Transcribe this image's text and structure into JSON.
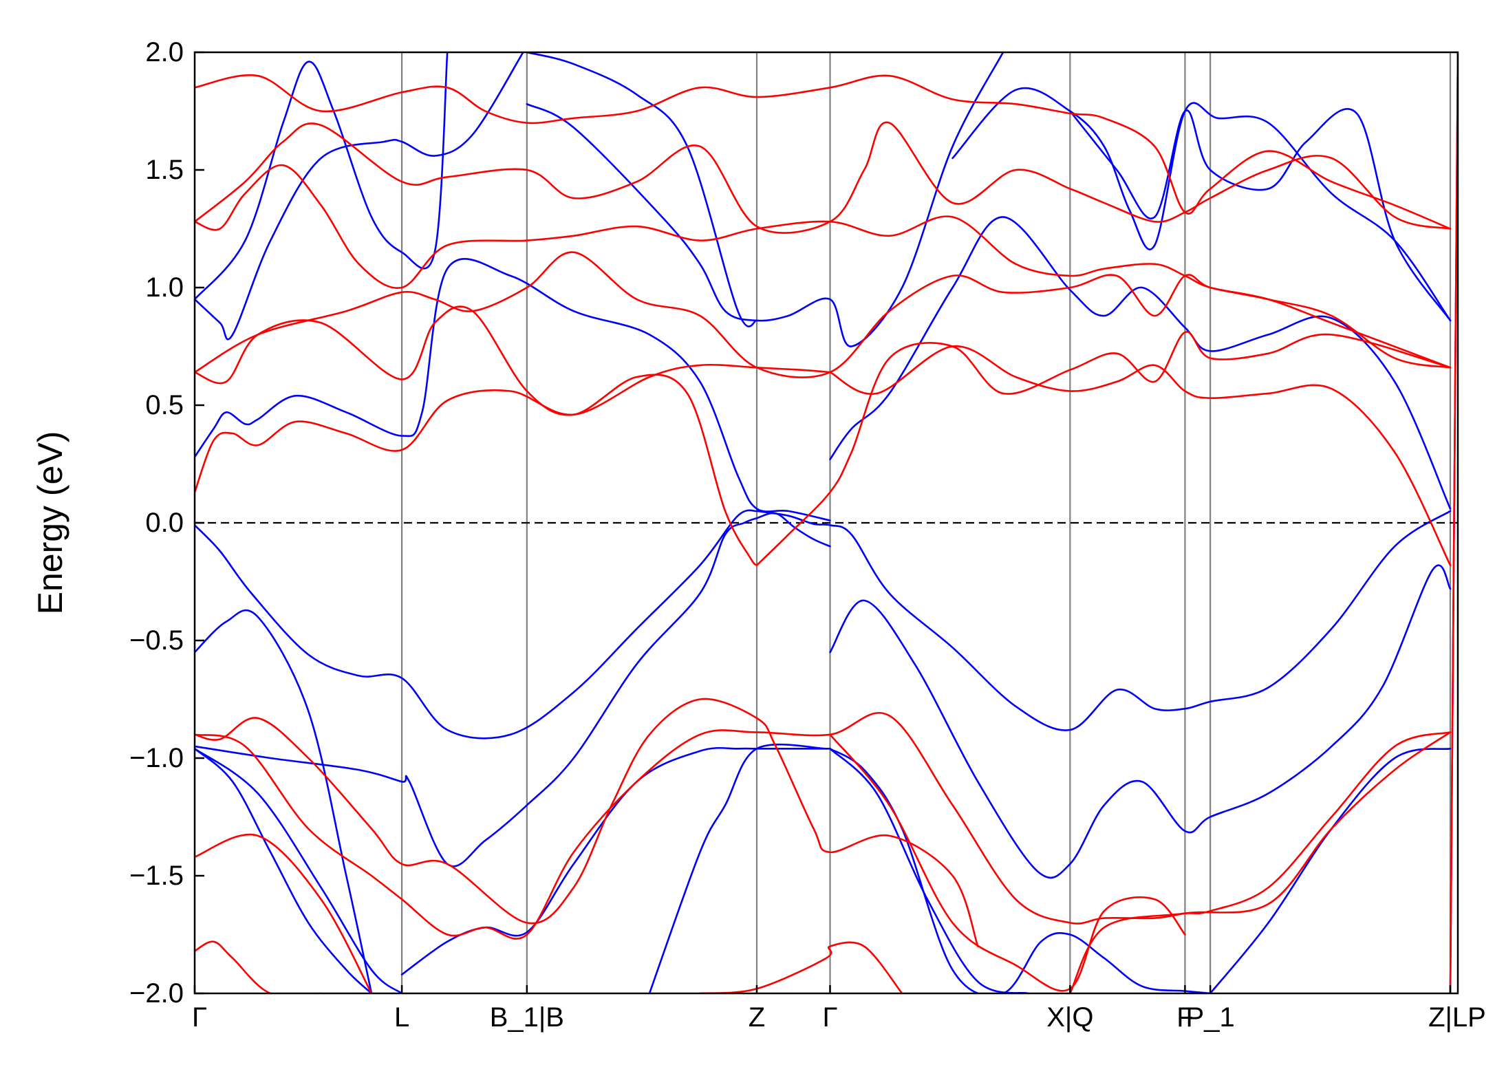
{
  "chart_data": {
    "type": "line",
    "title": "",
    "xlabel": "",
    "ylabel": "Energy (eV)",
    "ylim": [
      -2.0,
      2.0
    ],
    "yticks": [
      -2.0,
      -1.5,
      -1.0,
      -0.5,
      0.0,
      0.5,
      1.0,
      1.5,
      2.0
    ],
    "ytick_labels": [
      "−2.0",
      "−1.5",
      "−1.0",
      "−0.5",
      "0.0",
      "0.5",
      "1.0",
      "1.5",
      "2.0"
    ],
    "xlim": [
      0,
      1
    ],
    "kpoints": [
      {
        "label": "Γ",
        "x": 0.0,
        "line": false
      },
      {
        "label": "L",
        "x": 0.164,
        "line": true
      },
      {
        "label": "B_1|B",
        "x": 0.263,
        "line": true
      },
      {
        "label": "Z",
        "x": 0.445,
        "line": true
      },
      {
        "label": "Γ",
        "x": 0.503,
        "line": true
      },
      {
        "label": "X|Q",
        "x": 0.693,
        "line": true
      },
      {
        "label": "F",
        "x": 0.784,
        "line": true
      },
      {
        "label": "P_1",
        "x": 0.804,
        "line": true
      },
      {
        "label": "Z|LP",
        "x": 0.994,
        "line": true
      }
    ],
    "fermi_level": 0.0,
    "grid": false,
    "legend": "none",
    "colors": {
      "spin_up": "#0000ff",
      "spin_down": "#ff0000",
      "kline": "#808080",
      "fermi": "#000000",
      "axes": "#000000"
    },
    "series": [
      {
        "color": "#0000ff",
        "x": [
          0,
          0.02,
          0.045,
          0.09,
          0.13,
          0.164,
          0.2,
          0.25,
          0.3,
          0.35,
          0.4,
          0.43,
          0.445
        ],
        "y": [
          -0.01,
          -0.12,
          -0.3,
          -0.56,
          -0.65,
          -0.66,
          -0.88,
          -0.9,
          -0.72,
          -0.45,
          -0.18,
          0.03,
          0.05
        ]
      },
      {
        "color": "#0000ff",
        "x": [
          0.445,
          0.47,
          0.49,
          0.503,
          0.52,
          0.55,
          0.6,
          0.65,
          0.693,
          0.73,
          0.76,
          0.784,
          0.804,
          0.85,
          0.9,
          0.95,
          0.994
        ],
        "y": [
          0.05,
          0.03,
          -0.005,
          -0.01,
          -0.05,
          -0.3,
          -0.53,
          -0.78,
          -0.88,
          -0.71,
          -0.79,
          -0.79,
          -0.76,
          -0.7,
          -0.45,
          -0.1,
          0.05
        ]
      },
      {
        "color": "#0000ff",
        "x": [
          0,
          0.06,
          0.13,
          0.164,
          0.17,
          0.2,
          0.23,
          0.263,
          0.3,
          0.35,
          0.4,
          0.42,
          0.435,
          0.445,
          0.46,
          0.475,
          0.49,
          0.503
        ],
        "y": [
          -0.95,
          -1.0,
          -1.05,
          -1.1,
          -1.1,
          -1.45,
          -1.35,
          -1.2,
          -1.0,
          -0.6,
          -0.3,
          -0.05,
          0.0,
          0.02,
          0.04,
          -0.02,
          -0.07,
          -0.1
        ]
      },
      {
        "color": "#0000ff",
        "x": [
          0.503,
          0.53,
          0.57,
          0.62,
          0.667,
          0.693,
          0.72,
          0.75,
          0.784,
          0.804,
          0.85,
          0.9,
          0.94,
          0.98,
          0.994
        ],
        "y": [
          -0.55,
          -0.33,
          -0.6,
          -1.1,
          -1.48,
          -1.45,
          -1.2,
          -1.1,
          -1.31,
          -1.25,
          -1.15,
          -0.95,
          -0.7,
          -0.2,
          -0.28
        ]
      },
      {
        "color": "#0000ff",
        "x": [
          0,
          0.025,
          0.05,
          0.09,
          0.12,
          0.14
        ],
        "y": [
          -0.55,
          -0.42,
          -0.4,
          -0.8,
          -1.5,
          -2.0
        ]
      },
      {
        "color": "#0000ff",
        "x": [
          0,
          0.05,
          0.1,
          0.14,
          0.164
        ],
        "y": [
          -0.96,
          -1.15,
          -1.55,
          -1.9,
          -2.0
        ]
      },
      {
        "color": "#0000ff",
        "x": [
          0,
          0.03,
          0.06,
          0.09,
          0.12,
          0.14
        ],
        "y": [
          -0.96,
          -1.1,
          -1.4,
          -1.7,
          -1.9,
          -2.0
        ]
      },
      {
        "color": "#0000ff",
        "x": [
          0.164,
          0.2,
          0.23,
          0.263,
          0.3,
          0.35,
          0.4,
          0.43,
          0.445,
          0.47,
          0.503
        ],
        "y": [
          -1.92,
          -1.78,
          -1.72,
          -1.74,
          -1.45,
          -1.1,
          -0.97,
          -0.96,
          -0.96,
          -0.96,
          -0.96
        ]
      },
      {
        "color": "#0000ff",
        "x": [
          0.503,
          0.53,
          0.56,
          0.6,
          0.64,
          0.67,
          0.693,
          0.72,
          0.75,
          0.784,
          0.804
        ],
        "y": [
          -0.96,
          -1.05,
          -1.3,
          -1.9,
          -2.0,
          -1.78,
          -1.75,
          -1.85,
          -1.97,
          -1.99,
          -2.0
        ]
      },
      {
        "color": "#0000ff",
        "x": [
          0.804,
          0.85,
          0.9,
          0.95,
          0.994
        ],
        "y": [
          -2.0,
          -1.7,
          -1.3,
          -1.0,
          -0.96
        ]
      },
      {
        "color": "#0000ff",
        "x": [
          0.36,
          0.4,
          0.42,
          0.445,
          0.5
        ],
        "y": [
          -2.0,
          -1.4,
          -1.2,
          -0.96,
          -0.96
        ]
      },
      {
        "color": "#0000ff",
        "x": [
          0.503,
          0.54,
          0.58,
          0.62,
          0.66
        ],
        "y": [
          -0.96,
          -1.15,
          -1.6,
          -1.95,
          -2.0
        ]
      },
      {
        "color": "#0000ff",
        "x": [
          0,
          0.015,
          0.025,
          0.04,
          0.05,
          0.08,
          0.12,
          0.164,
          0.18,
          0.2,
          0.25,
          0.3,
          0.36,
          0.4,
          0.43,
          0.445,
          0.47,
          0.503
        ],
        "y": [
          0.28,
          0.4,
          0.47,
          0.42,
          0.44,
          0.54,
          0.47,
          0.37,
          0.47,
          1.08,
          1.05,
          0.9,
          0.8,
          0.6,
          0.2,
          0.06,
          0.05,
          0.01
        ]
      },
      {
        "color": "#0000ff",
        "x": [
          0.503,
          0.52,
          0.55,
          0.6,
          0.64,
          0.693,
          0.72,
          0.75,
          0.784,
          0.804,
          0.85,
          0.9,
          0.95,
          0.994
        ],
        "y": [
          0.27,
          0.4,
          0.55,
          1.0,
          1.3,
          0.99,
          0.88,
          1.0,
          0.83,
          0.73,
          0.8,
          0.87,
          0.6,
          0.06
        ]
      },
      {
        "color": "#0000ff",
        "x": [
          0,
          0.02,
          0.03,
          0.06,
          0.1,
          0.15,
          0.164,
          0.19,
          0.22,
          0.26
        ],
        "y": [
          0.95,
          0.85,
          0.8,
          1.2,
          1.55,
          1.62,
          1.62,
          1.56,
          1.65,
          2.0
        ]
      },
      {
        "color": "#0000ff",
        "x": [
          0.263,
          0.3,
          0.37,
          0.4,
          0.42,
          0.445,
          0.47,
          0.503,
          0.52,
          0.56,
          0.6,
          0.64
        ],
        "y": [
          1.78,
          1.68,
          1.3,
          1.1,
          0.9,
          0.86,
          0.88,
          0.95,
          0.75,
          1.0,
          1.6,
          2.0
        ]
      },
      {
        "color": "#0000ff",
        "x": [
          0.6,
          0.65,
          0.693,
          0.72,
          0.74,
          0.76,
          0.784,
          0.81,
          0.85,
          0.9,
          0.95,
          0.994
        ],
        "y": [
          1.55,
          1.84,
          1.75,
          1.6,
          1.33,
          1.18,
          1.75,
          1.72,
          1.7,
          1.4,
          1.2,
          0.86
        ]
      },
      {
        "color": "#0000ff",
        "x": [
          0,
          0.04,
          0.07,
          0.09,
          0.11,
          0.14,
          0.164,
          0.19,
          0.2
        ],
        "y": [
          0.95,
          1.2,
          1.7,
          1.96,
          1.75,
          1.3,
          1.15,
          1.15,
          2.0
        ]
      },
      {
        "color": "#0000ff",
        "x": [
          0.263,
          0.3,
          0.35,
          0.39,
          0.43,
          0.445
        ],
        "y": [
          2.0,
          1.95,
          1.82,
          1.6,
          0.9,
          0.86
        ]
      },
      {
        "color": "#0000ff",
        "x": [
          0.693,
          0.73,
          0.76,
          0.784,
          0.804,
          0.85,
          0.88,
          0.92,
          0.95,
          0.994
        ],
        "y": [
          1.75,
          1.5,
          1.3,
          1.75,
          1.5,
          1.42,
          1.62,
          1.74,
          1.2,
          0.86
        ]
      },
      {
        "color": "#0000ff",
        "x": [
          0.994,
          1.0
        ],
        "y": [
          -2.0,
          2.0
        ]
      },
      {
        "color": "#ff0000",
        "x": [
          0,
          0.015,
          0.03,
          0.05,
          0.08,
          0.12,
          0.164,
          0.2,
          0.25,
          0.3,
          0.36,
          0.4,
          0.445,
          0.48,
          0.503
        ],
        "y": [
          0.13,
          0.35,
          0.38,
          0.33,
          0.43,
          0.38,
          0.31,
          0.52,
          0.56,
          0.46,
          0.62,
          0.67,
          0.66,
          0.65,
          0.64
        ]
      },
      {
        "color": "#ff0000",
        "x": [
          0.503,
          0.54,
          0.6,
          0.65,
          0.693,
          0.73,
          0.76,
          0.784,
          0.804,
          0.85,
          0.9,
          0.95,
          0.994
        ],
        "y": [
          0.64,
          0.55,
          0.75,
          0.62,
          0.56,
          0.6,
          0.67,
          0.56,
          0.53,
          0.55,
          0.57,
          0.3,
          -0.18
        ]
      },
      {
        "color": "#ff0000",
        "x": [
          0,
          0.025,
          0.05,
          0.1,
          0.164,
          0.19,
          0.22,
          0.263,
          0.3,
          0.35,
          0.39,
          0.42,
          0.44,
          0.445
        ],
        "y": [
          0.64,
          0.6,
          0.8,
          0.85,
          0.61,
          0.85,
          0.9,
          0.56,
          0.46,
          0.62,
          0.55,
          0.05,
          -0.15,
          -0.18
        ]
      },
      {
        "color": "#ff0000",
        "x": [
          0.445,
          0.47,
          0.503,
          0.52,
          0.55,
          0.6,
          0.64,
          0.693,
          0.73,
          0.76,
          0.784,
          0.804,
          0.85,
          0.9,
          0.994
        ],
        "y": [
          -0.18,
          -0.05,
          0.13,
          0.3,
          0.7,
          0.75,
          0.55,
          0.65,
          0.72,
          0.6,
          0.81,
          0.7,
          0.72,
          0.8,
          0.66
        ]
      },
      {
        "color": "#ff0000",
        "x": [
          0,
          0.05,
          0.12,
          0.164,
          0.19,
          0.22,
          0.263,
          0.3,
          0.35,
          0.4,
          0.445,
          0.503,
          0.55,
          0.6,
          0.64,
          0.693,
          0.73,
          0.76,
          0.784,
          0.804,
          0.85,
          0.9,
          0.95,
          0.994
        ],
        "y": [
          0.64,
          0.8,
          0.9,
          0.98,
          0.95,
          0.9,
          1.0,
          1.15,
          0.95,
          0.88,
          0.66,
          0.64,
          0.9,
          1.05,
          0.98,
          1.0,
          1.05,
          0.88,
          1.05,
          1.0,
          0.95,
          0.88,
          0.7,
          0.66
        ]
      },
      {
        "color": "#ff0000",
        "x": [
          0,
          0.02,
          0.04,
          0.07,
          0.1,
          0.13,
          0.164,
          0.2,
          0.263,
          0.3,
          0.35,
          0.4,
          0.445,
          0.503,
          0.55,
          0.6,
          0.65,
          0.693,
          0.72,
          0.76,
          0.784,
          0.804,
          0.85,
          0.9,
          0.994
        ],
        "y": [
          1.28,
          1.25,
          1.4,
          1.52,
          1.35,
          1.1,
          1.0,
          1.18,
          1.2,
          1.22,
          1.26,
          1.2,
          1.25,
          1.28,
          1.22,
          1.3,
          1.1,
          1.05,
          1.08,
          1.1,
          1.05,
          1.0,
          0.95,
          0.85,
          0.66
        ]
      },
      {
        "color": "#ff0000",
        "x": [
          0,
          0.04,
          0.07,
          0.1,
          0.164,
          0.2,
          0.263,
          0.3,
          0.35,
          0.4,
          0.445,
          0.503,
          0.53,
          0.55,
          0.6,
          0.65,
          0.693,
          0.72,
          0.76,
          0.784,
          0.804,
          0.85,
          0.9,
          0.95,
          0.994
        ],
        "y": [
          1.28,
          1.45,
          1.62,
          1.69,
          1.45,
          1.47,
          1.5,
          1.38,
          1.45,
          1.6,
          1.26,
          1.28,
          1.5,
          1.7,
          1.36,
          1.5,
          1.42,
          1.36,
          1.28,
          1.32,
          1.38,
          1.5,
          1.55,
          1.3,
          1.25
        ]
      },
      {
        "color": "#ff0000",
        "x": [
          0,
          0.05,
          0.1,
          0.164,
          0.2,
          0.23,
          0.263,
          0.3,
          0.35,
          0.4,
          0.445,
          0.503,
          0.55,
          0.6,
          0.65,
          0.693,
          0.72,
          0.76,
          0.784,
          0.804,
          0.85,
          0.9,
          0.95,
          0.994
        ],
        "y": [
          1.85,
          1.9,
          1.75,
          1.83,
          1.85,
          1.75,
          1.7,
          1.72,
          1.75,
          1.85,
          1.81,
          1.85,
          1.9,
          1.8,
          1.78,
          1.74,
          1.72,
          1.6,
          1.32,
          1.42,
          1.58,
          1.45,
          1.35,
          1.25
        ]
      },
      {
        "color": "#ff0000",
        "x": [
          0,
          0.02,
          0.05,
          0.09,
          0.14,
          0.164,
          0.2,
          0.263,
          0.3,
          0.33,
          0.36,
          0.4,
          0.445,
          0.46,
          0.49,
          0.503,
          0.55,
          0.6,
          0.62
        ],
        "y": [
          -0.9,
          -0.92,
          -0.83,
          -1.0,
          -1.3,
          -1.45,
          -1.45,
          -1.7,
          -1.55,
          -1.2,
          -0.9,
          -0.75,
          -0.83,
          -0.95,
          -1.3,
          -1.4,
          -1.33,
          -1.5,
          -1.8
        ]
      },
      {
        "color": "#ff0000",
        "x": [
          0,
          0.04,
          0.09,
          0.14,
          0.164,
          0.2,
          0.23,
          0.263,
          0.3,
          0.35,
          0.4,
          0.445,
          0.503,
          0.55,
          0.6,
          0.65,
          0.693,
          0.72,
          0.76,
          0.784,
          0.804,
          0.85,
          0.9,
          0.95,
          0.994
        ],
        "y": [
          -0.9,
          -0.95,
          -1.3,
          -1.5,
          -1.6,
          -1.75,
          -1.72,
          -1.75,
          -1.4,
          -1.1,
          -0.9,
          -0.89,
          -0.9,
          -0.82,
          -1.2,
          -1.6,
          -1.7,
          -1.68,
          -1.68,
          -1.66,
          -1.65,
          -1.55,
          -1.25,
          -0.95,
          -0.89
        ]
      },
      {
        "color": "#ff0000",
        "x": [
          0,
          0.05,
          0.1,
          0.14
        ],
        "y": [
          -1.42,
          -1.33,
          -1.6,
          -2.0
        ]
      },
      {
        "color": "#ff0000",
        "x": [
          0,
          0.015,
          0.03,
          0.06,
          0.1
        ],
        "y": [
          -1.82,
          -1.78,
          -1.85,
          -2.0,
          -2.0
        ]
      },
      {
        "color": "#ff0000",
        "x": [
          0.4,
          0.445,
          0.5,
          0.503,
          0.53,
          0.56
        ],
        "y": [
          -2.0,
          -1.98,
          -1.85,
          -1.8,
          -1.8,
          -2.0
        ]
      },
      {
        "color": "#ff0000",
        "x": [
          0.503,
          0.55,
          0.6,
          0.65,
          0.693,
          0.72,
          0.76,
          0.784
        ],
        "y": [
          -0.9,
          -1.2,
          -1.7,
          -1.88,
          -1.98,
          -1.65,
          -1.6,
          -1.75
        ]
      },
      {
        "color": "#ff0000",
        "x": [
          0.693,
          0.72,
          0.784,
          0.85,
          0.9,
          0.95,
          0.994
        ],
        "y": [
          -2.0,
          -1.72,
          -1.66,
          -1.62,
          -1.3,
          -1.05,
          -0.89
        ]
      },
      {
        "color": "#ff0000",
        "x": [
          0.994,
          1.0
        ],
        "y": [
          -2.0,
          2.0
        ]
      }
    ]
  }
}
